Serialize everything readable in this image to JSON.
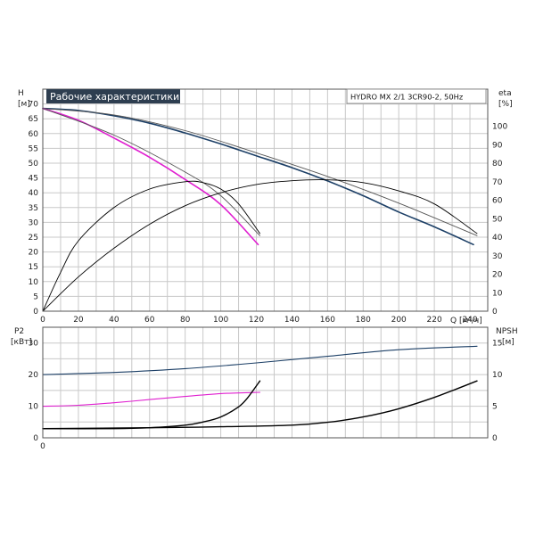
{
  "title": "Рабочие характеристики",
  "model": "HYDRO MX 2/1 3CR90-2, 50Hz",
  "colors": {
    "dark_blue": "#1c3f66",
    "magenta": "#e020d0",
    "black": "#000000",
    "title_bg": "#2e3e50"
  },
  "chart_data": [
    {
      "type": "line",
      "name": "performance",
      "x_label": "Q [м³/ч]",
      "y_left_label": [
        "H",
        "[м]"
      ],
      "y_right_label": [
        "eta",
        "[%]"
      ],
      "xlim": [
        0,
        250
      ],
      "ylim_left": [
        0,
        75
      ],
      "ylim_right": [
        0,
        120
      ],
      "x_ticks": [
        0,
        20,
        40,
        60,
        80,
        100,
        120,
        140,
        160,
        180,
        200,
        220,
        240
      ],
      "y_left_ticks": [
        0,
        5,
        10,
        15,
        20,
        25,
        30,
        35,
        40,
        45,
        50,
        55,
        60,
        65,
        70
      ],
      "y_right_ticks": [
        0,
        10,
        20,
        30,
        40,
        50,
        60,
        70,
        80,
        90,
        100
      ],
      "grid": true,
      "series": [
        {
          "role": "H_total",
          "axis": "left",
          "color": "#1c3f66",
          "width": 1.6,
          "x": [
            0,
            20,
            40,
            60,
            80,
            100,
            120,
            140,
            160,
            180,
            200,
            220,
            242
          ],
          "y": [
            68.5,
            67.8,
            66,
            63.5,
            60.2,
            56.5,
            52.5,
            48.5,
            44,
            39,
            33.5,
            28.5,
            22.5
          ]
        },
        {
          "role": "H_total_upper",
          "axis": "left",
          "color": "#555555",
          "width": 0.9,
          "x": [
            0,
            40,
            80,
            120,
            160,
            200,
            244
          ],
          "y": [
            68.5,
            66.3,
            61,
            53.5,
            45.5,
            36.5,
            25.5
          ]
        },
        {
          "role": "H_single",
          "axis": "left",
          "color": "#e020d0",
          "width": 1.6,
          "x": [
            0,
            20,
            40,
            60,
            80,
            100,
            121
          ],
          "y": [
            68.5,
            64.5,
            58.5,
            52,
            44.5,
            36,
            22.5
          ]
        },
        {
          "role": "H_single_upper",
          "axis": "left",
          "color": "#555555",
          "width": 0.9,
          "x": [
            0,
            40,
            80,
            100,
            122
          ],
          "y": [
            68.5,
            59.5,
            47,
            39,
            25.5
          ]
        },
        {
          "role": "eta_total",
          "axis": "right",
          "color": "#000000",
          "width": 0.9,
          "x": [
            0,
            20,
            40,
            60,
            80,
            100,
            120,
            140,
            160,
            180,
            200,
            220,
            244
          ],
          "y": [
            0,
            18.5,
            34,
            47,
            57,
            64,
            68.5,
            70.5,
            71,
            69.5,
            65,
            58,
            42
          ]
        },
        {
          "role": "eta_single",
          "axis": "right",
          "color": "#000000",
          "width": 0.9,
          "x": [
            0,
            10,
            20,
            40,
            60,
            80,
            90,
            100,
            110,
            122
          ],
          "y": [
            0,
            21,
            38,
            56,
            66,
            70,
            69.5,
            66,
            58,
            42
          ]
        }
      ]
    },
    {
      "type": "line",
      "name": "power_npsh",
      "y_left_label": [
        "P2",
        "[кВт]"
      ],
      "y_right_label": [
        "NPSH",
        "[м]"
      ],
      "xlim": [
        0,
        250
      ],
      "ylim_left": [
        0,
        35
      ],
      "ylim_right": [
        0,
        17.5
      ],
      "y_left_ticks": [
        0,
        10,
        20,
        30
      ],
      "y_right_ticks": [
        0,
        5,
        10,
        15
      ],
      "grid": true,
      "series": [
        {
          "role": "P2_total",
          "axis": "left",
          "color": "#1c3f66",
          "width": 1.1,
          "x": [
            0,
            40,
            80,
            120,
            160,
            200,
            244
          ],
          "y": [
            20,
            20.7,
            21.9,
            23.7,
            25.8,
            27.9,
            29
          ]
        },
        {
          "role": "P2_single",
          "axis": "left",
          "color": "#e020d0",
          "width": 1.1,
          "x": [
            0,
            20,
            40,
            60,
            80,
            100,
            122
          ],
          "y": [
            10,
            10.3,
            11.1,
            12.1,
            13.1,
            14,
            14.4
          ]
        },
        {
          "role": "NPSH_single",
          "axis": "right",
          "color": "#000000",
          "width": 1.4,
          "x": [
            0,
            40,
            60,
            80,
            90,
            100,
            110,
            115,
            122
          ],
          "y": [
            1.45,
            1.45,
            1.6,
            2,
            2.5,
            3.3,
            4.9,
            6.3,
            9
          ]
        },
        {
          "role": "NPSH_total",
          "axis": "right",
          "color": "#000000",
          "width": 1.4,
          "x": [
            0,
            60,
            100,
            140,
            160,
            180,
            200,
            220,
            244
          ],
          "y": [
            1.45,
            1.6,
            1.75,
            2,
            2.45,
            3.3,
            4.6,
            6.4,
            9
          ]
        }
      ]
    }
  ]
}
